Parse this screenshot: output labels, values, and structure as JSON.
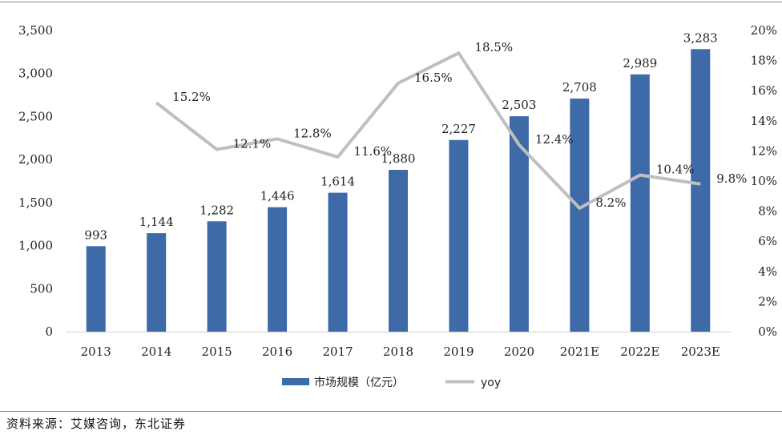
{
  "source_note": "资料来源：艾媒咨询，东北证券",
  "chart_data": {
    "type": "bar",
    "categories": [
      "2013",
      "2014",
      "2015",
      "2016",
      "2017",
      "2018",
      "2019",
      "2020",
      "2021E",
      "2022E",
      "2023E"
    ],
    "series": [
      {
        "name": "市场规模（亿元）",
        "type": "bar",
        "axis": "left",
        "color": "#3E6AA8",
        "values": [
          993,
          1144,
          1282,
          1446,
          1614,
          1880,
          2227,
          2503,
          2708,
          2989,
          3283
        ],
        "labels": [
          "993",
          "1,144",
          "1,282",
          "1,446",
          "1,614",
          "1,880",
          "2,227",
          "2,503",
          "2,708",
          "2,989",
          "3,283"
        ]
      },
      {
        "name": "yoy",
        "type": "line",
        "axis": "right",
        "color": "#BFBFBF",
        "values": [
          null,
          15.2,
          12.1,
          12.8,
          11.6,
          16.5,
          18.5,
          12.4,
          8.2,
          10.4,
          9.8
        ],
        "labels": [
          "",
          "15.2%",
          "12.1%",
          "12.8%",
          "11.6%",
          "16.5%",
          "18.5%",
          "12.4%",
          "8.2%",
          "10.4%",
          "9.8%"
        ]
      }
    ],
    "left_axis": {
      "ylim": [
        0,
        3500
      ],
      "ticks": [
        "0",
        "500",
        "1,000",
        "1,500",
        "2,000",
        "2,500",
        "3,000",
        "3,500"
      ]
    },
    "right_axis": {
      "ylim": [
        0,
        20
      ],
      "ticks": [
        "0%",
        "2%",
        "4%",
        "6%",
        "8%",
        "10%",
        "12%",
        "14%",
        "16%",
        "18%",
        "20%"
      ]
    },
    "grid": false,
    "legend": "bottom"
  }
}
